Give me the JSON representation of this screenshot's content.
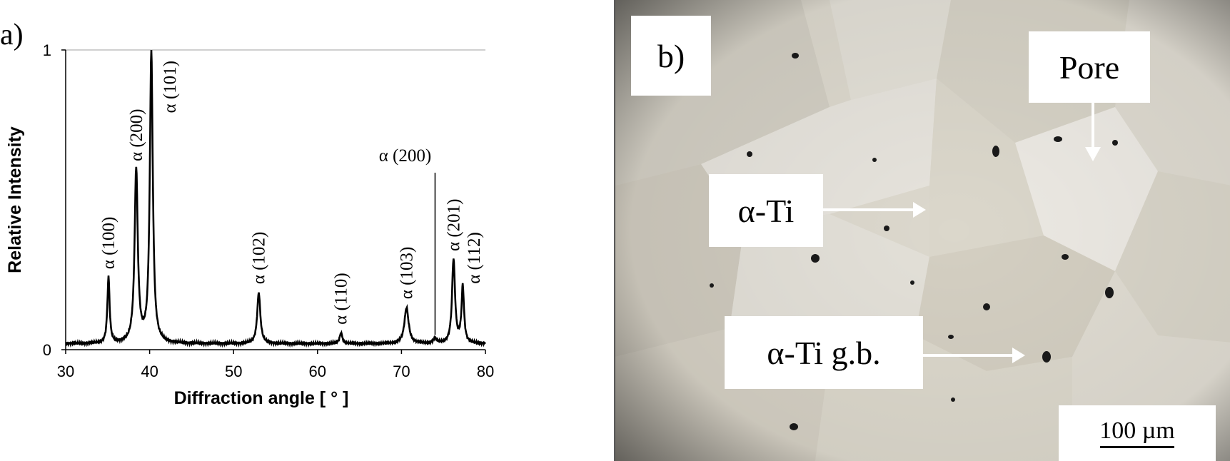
{
  "panel_a_letter": "a)",
  "chart_data": {
    "type": "line",
    "xlabel": "Diffraction angle [ ° ]",
    "ylabel": "Relative Intensity",
    "xlim": [
      30,
      80
    ],
    "ylim": [
      0,
      1
    ],
    "xticks": [
      30,
      40,
      50,
      60,
      70,
      80
    ],
    "yticks": [
      0,
      1
    ],
    "grid": "top reference line at 1",
    "baseline": 0.02,
    "peaks": [
      {
        "x": 35.1,
        "y": 0.24,
        "label": "α (100)"
      },
      {
        "x": 38.4,
        "y": 0.6,
        "label": "α (200)"
      },
      {
        "x": 40.2,
        "y": 1.0,
        "label": "α (101)"
      },
      {
        "x": 53.0,
        "y": 0.19,
        "label": "α (102)"
      },
      {
        "x": 62.8,
        "y": 0.055,
        "label": "α (110)"
      },
      {
        "x": 70.6,
        "y": 0.14,
        "label": "α (103)"
      },
      {
        "x": 74.0,
        "y": 0.035,
        "label": "α (200)"
      },
      {
        "x": 76.2,
        "y": 0.3,
        "label": "α (201)"
      },
      {
        "x": 77.3,
        "y": 0.21,
        "label": "α (112)"
      }
    ]
  },
  "micrograph": {
    "panel_letter": "b)",
    "pore_label": "Pore",
    "alpha_ti_label": "α-Ti",
    "gb_label": "α-Ti g.b.",
    "scale_label": "100 µm"
  }
}
